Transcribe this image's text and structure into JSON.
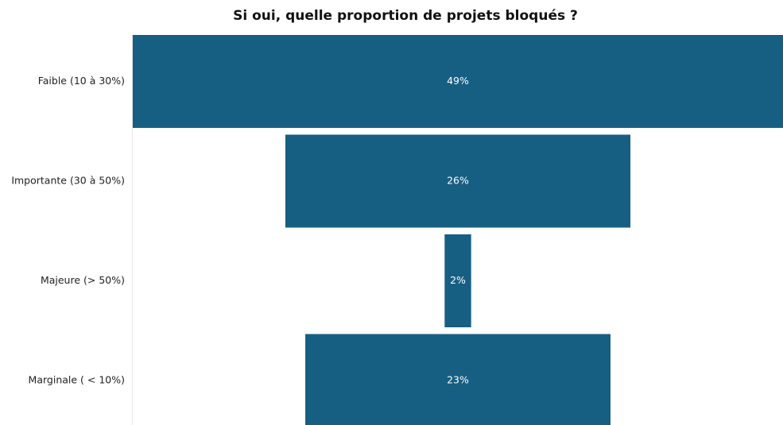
{
  "chart_data": {
    "type": "funnel",
    "title": "Si oui, quelle proportion de projets bloqués ?",
    "categories": [
      "Faible (10 à 30%)",
      "Importante (30 à 50%)",
      "Majeure (> 50%)",
      "Marginale ( < 10%)"
    ],
    "values": [
      49,
      26,
      2,
      23
    ],
    "value_labels": [
      "49%",
      "26%",
      "2%",
      "23%"
    ],
    "color": "#175f82"
  }
}
